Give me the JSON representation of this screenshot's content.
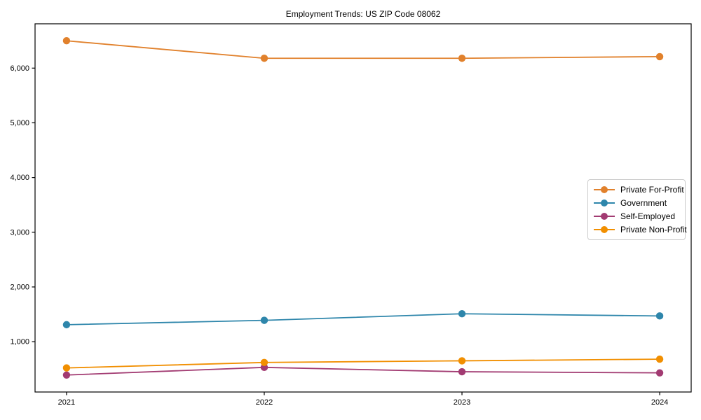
{
  "chart_data": {
    "type": "line",
    "title": "Employment Trends: US ZIP Code 08062",
    "x": [
      2021,
      2022,
      2023,
      2024
    ],
    "xtick_labels": [
      "2021",
      "2022",
      "2023",
      "2024"
    ],
    "series": [
      {
        "name": "Private For-Profit",
        "color": "#E1812C",
        "values": [
          6500,
          6180,
          6180,
          6210
        ]
      },
      {
        "name": "Government",
        "color": "#2E86AB",
        "values": [
          1310,
          1390,
          1510,
          1470
        ]
      },
      {
        "name": "Self-Employed",
        "color": "#A23B72",
        "values": [
          390,
          530,
          450,
          430
        ]
      },
      {
        "name": "Private Non-Profit",
        "color": "#F18F01",
        "values": [
          520,
          620,
          650,
          680
        ]
      }
    ],
    "yticks": [
      1000,
      2000,
      3000,
      4000,
      5000,
      6000
    ],
    "ytick_labels": [
      "1,000",
      "2,000",
      "3,000",
      "4,000",
      "5,000",
      "6,000"
    ],
    "ylim": [
      80,
      6810
    ],
    "grid": false,
    "legend_position": "center right",
    "axis_color": "#000000",
    "tick_label_color": "#000000"
  }
}
